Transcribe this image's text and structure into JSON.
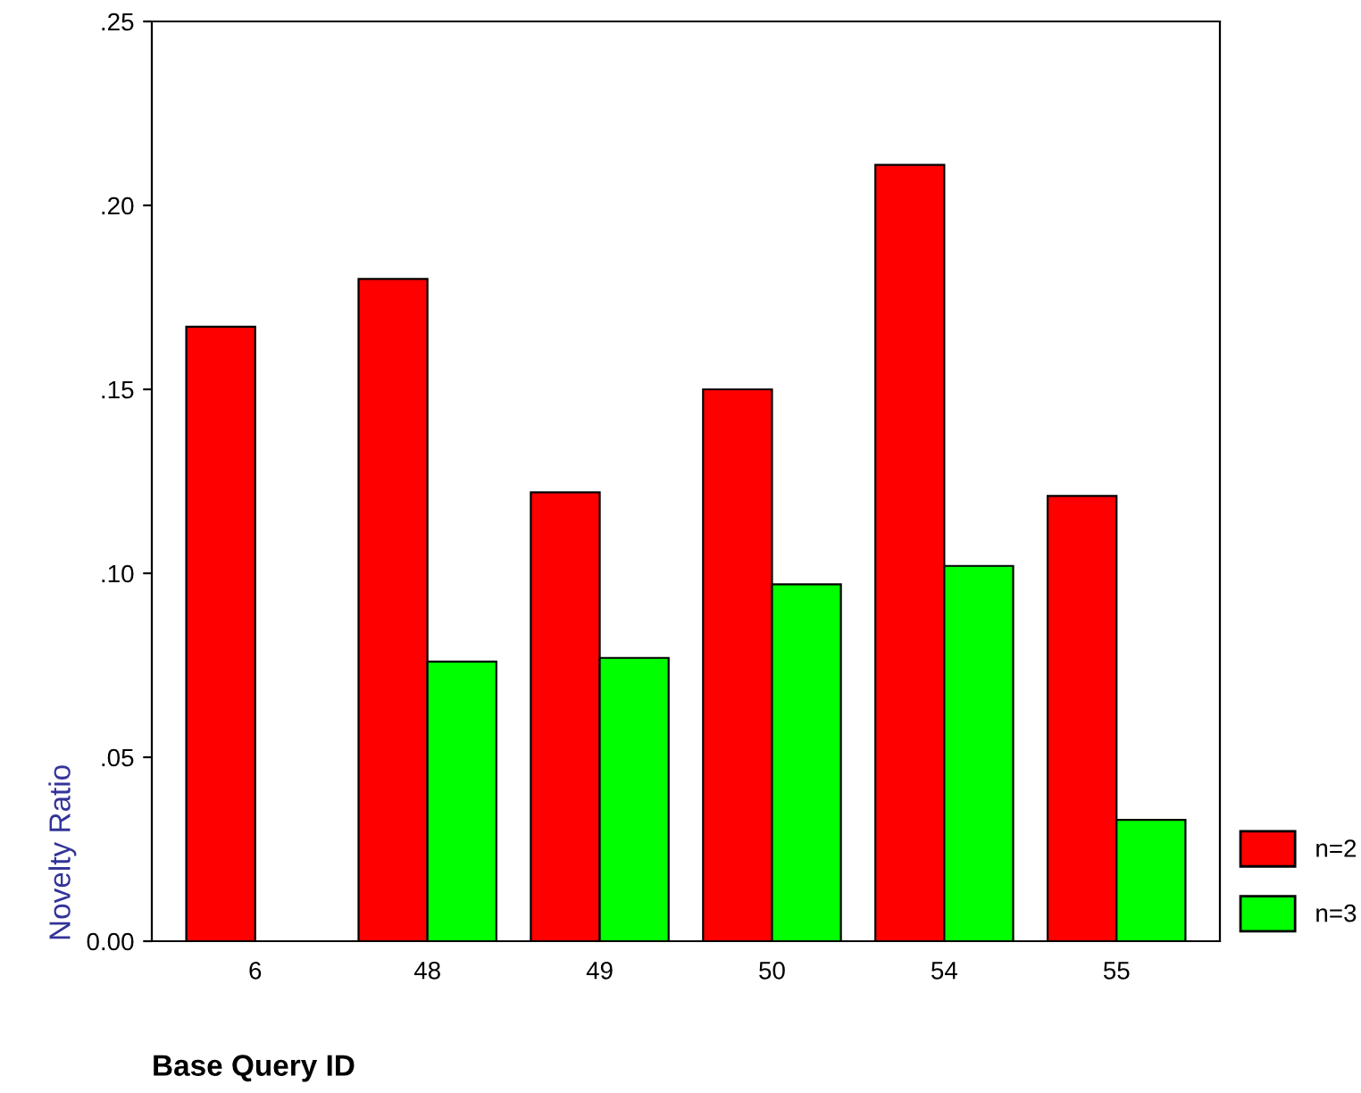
{
  "chart_data": {
    "type": "bar",
    "xlabel": "Base Query ID",
    "ylabel": "Novelty Ratio",
    "categories": [
      "6",
      "48",
      "49",
      "50",
      "54",
      "55"
    ],
    "series": [
      {
        "name": "n=2",
        "color": "#ff0000",
        "values": [
          0.167,
          0.18,
          0.122,
          0.15,
          0.211,
          0.121
        ]
      },
      {
        "name": "n=3",
        "color": "#00ff00",
        "values": [
          null,
          0.076,
          0.077,
          0.097,
          0.102,
          0.033
        ]
      }
    ],
    "ylim": [
      0,
      0.25
    ],
    "yticks": [
      {
        "value": 0,
        "label": "0.00"
      },
      {
        "value": 0.05,
        "label": ".05"
      },
      {
        "value": 0.1,
        "label": ".10"
      },
      {
        "value": 0.15,
        "label": ".15"
      },
      {
        "value": 0.2,
        "label": ".20"
      },
      {
        "value": 0.25,
        "label": ".25"
      }
    ],
    "grid": false,
    "legend": "bottom right"
  }
}
